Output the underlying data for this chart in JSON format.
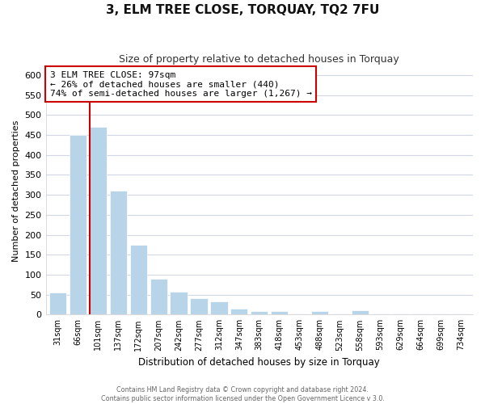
{
  "title": "3, ELM TREE CLOSE, TORQUAY, TQ2 7FU",
  "subtitle": "Size of property relative to detached houses in Torquay",
  "xlabel": "Distribution of detached houses by size in Torquay",
  "ylabel": "Number of detached properties",
  "bar_labels": [
    "31sqm",
    "66sqm",
    "101sqm",
    "137sqm",
    "172sqm",
    "207sqm",
    "242sqm",
    "277sqm",
    "312sqm",
    "347sqm",
    "383sqm",
    "418sqm",
    "453sqm",
    "488sqm",
    "523sqm",
    "558sqm",
    "593sqm",
    "629sqm",
    "664sqm",
    "699sqm",
    "734sqm"
  ],
  "bar_values": [
    55,
    450,
    470,
    310,
    175,
    90,
    58,
    42,
    32,
    15,
    8,
    8,
    2,
    8,
    2,
    10,
    2,
    2,
    3,
    2,
    3
  ],
  "bar_color": "#b8d4e8",
  "marker_index": 2,
  "marker_line_color": "#cc0000",
  "annotation_line1": "3 ELM TREE CLOSE: 97sqm",
  "annotation_line2": "← 26% of detached houses are smaller (440)",
  "annotation_line3": "74% of semi-detached houses are larger (1,267) →",
  "annotation_box_color": "#ffffff",
  "annotation_box_edge": "#cc0000",
  "ylim": [
    0,
    620
  ],
  "yticks": [
    0,
    50,
    100,
    150,
    200,
    250,
    300,
    350,
    400,
    450,
    500,
    550,
    600
  ],
  "footer1": "Contains HM Land Registry data © Crown copyright and database right 2024.",
  "footer2": "Contains public sector information licensed under the Open Government Licence v 3.0.",
  "bg_color": "#ffffff",
  "plot_bg_color": "#ffffff"
}
